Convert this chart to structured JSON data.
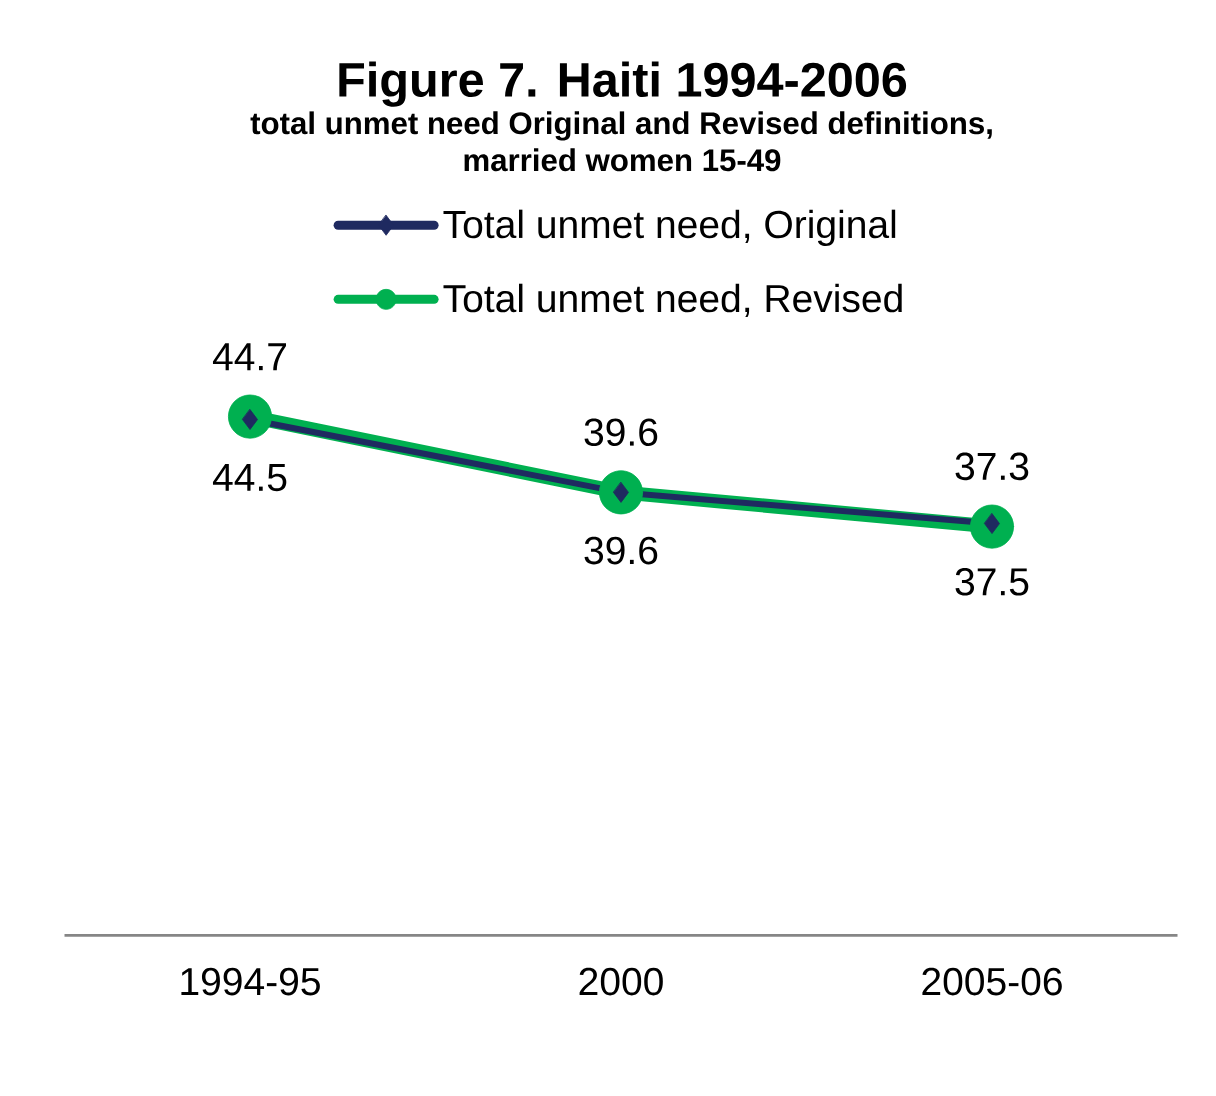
{
  "chart_data": {
    "type": "line",
    "title": "Figure 7. Haiti 1994-2006",
    "subtitle": "total unmet need Original and Revised definitions, married women 15-49",
    "categories": [
      "1994-95",
      "2000",
      "2005-06"
    ],
    "series": [
      {
        "name": "Total unmet need, Original",
        "color": "#1f2a60",
        "values": [
          44.5,
          39.6,
          37.5
        ],
        "marker": "diamond"
      },
      {
        "name": "Total unmet need, Revised",
        "color": "#00b050",
        "values": [
          44.7,
          39.6,
          37.3
        ],
        "marker": "circle"
      }
    ],
    "tick_labels": "x",
    "data_labels": true,
    "legend": "top"
  }
}
